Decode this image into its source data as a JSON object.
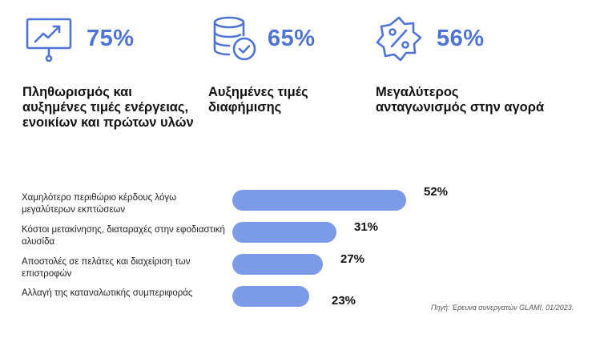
{
  "stats": [
    {
      "icon": "presentation-chart-icon",
      "percent": "75%",
      "text": "Πληθωρισμός και αυξημένες τιμές ενέργειας, ενοικίων και πρώτων υλών"
    },
    {
      "icon": "database-check-icon",
      "percent": "65%",
      "text": "Αυξημένες τιμές διαφήμισης"
    },
    {
      "icon": "discount-badge-icon",
      "percent": "56%",
      "text": "Μεγαλύτερος ανταγωνισμός στην αγορά"
    }
  ],
  "colors": {
    "accent": "#4f74d6",
    "bar": "#7b9be6"
  },
  "chart_data": {
    "type": "bar",
    "orientation": "horizontal",
    "categories": [
      "Χαμηλότερο περιθώριο κέρδους λόγω μεγαλύτερων εκπτώσεων",
      "Κόστοι μετακίνησης, διαταραχές στην εφοδιαστική αλυσίδα",
      "Αποστολές σε πελάτες και διαχείριση των επιστροφών",
      "Αλλαγή της καταναλωτικής συμπεριφοράς"
    ],
    "values": [
      52,
      31,
      27,
      23
    ],
    "value_labels": [
      "52%",
      "31%",
      "27%",
      "23%"
    ],
    "xlim": [
      0,
      100
    ],
    "grid": false
  },
  "source": "Πηγή: Έρευνα συνεργατών GLAMI, 01/2023."
}
